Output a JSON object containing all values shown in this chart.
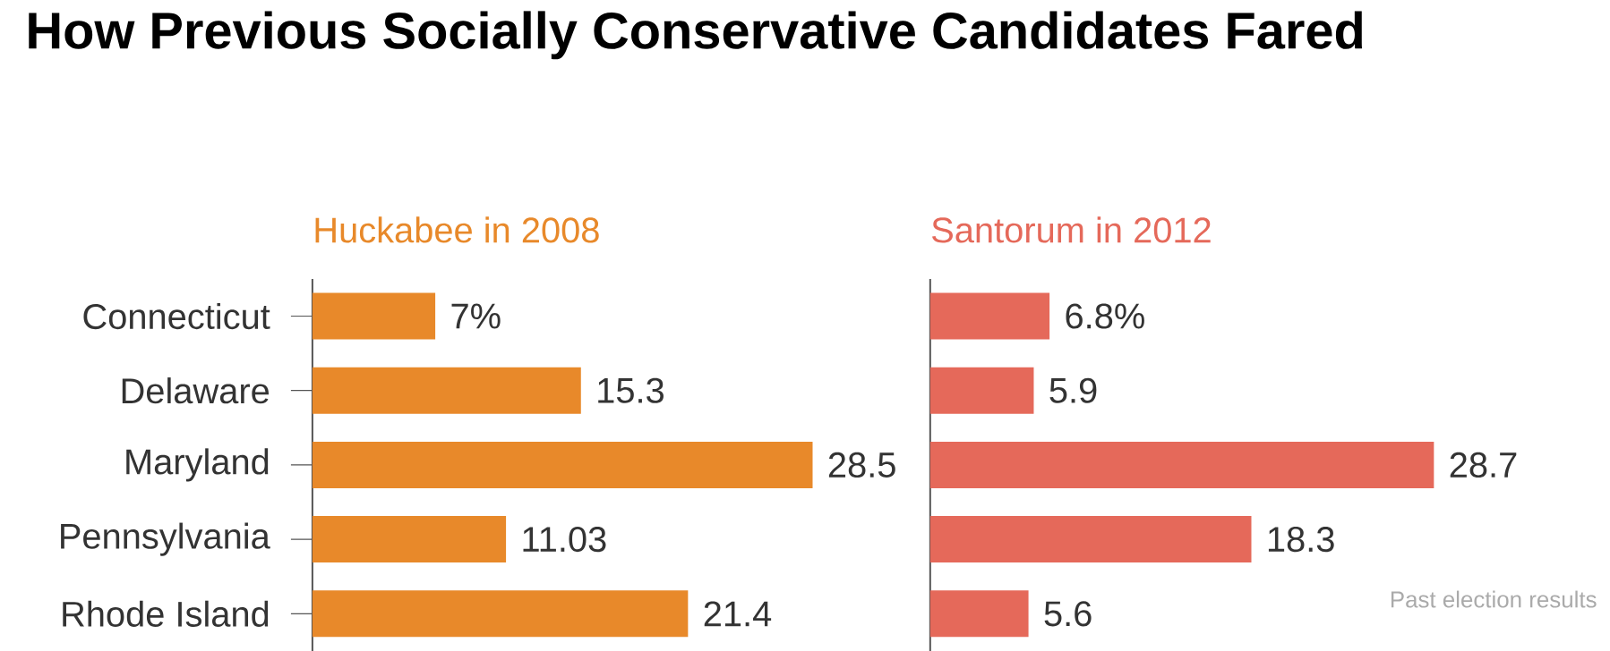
{
  "chart_data": [
    {
      "type": "bar",
      "orientation": "horizontal",
      "title": "How Previous Socially Conservative Candidates Fared",
      "subtitle": "Huckabee in 2008",
      "categories": [
        "Connecticut",
        "Delaware",
        "Maryland",
        "Pennsylvania",
        "Rhode Island"
      ],
      "values": [
        7,
        15.3,
        28.5,
        11.03,
        21.4
      ],
      "value_labels": [
        "7%",
        "15.3",
        "28.5",
        "11.03",
        "21.4"
      ],
      "color": "#e8892a",
      "tick_labels": "y"
    },
    {
      "type": "bar",
      "orientation": "horizontal",
      "subtitle": "Santorum in 2012",
      "categories": [
        null,
        null,
        null,
        null,
        null
      ],
      "values": [
        6.8,
        5.9,
        28.7,
        18.3,
        5.6
      ],
      "value_labels": [
        "6.8%",
        "5.9",
        "28.7",
        "18.3",
        "5.6"
      ],
      "color": "#e5695a",
      "tick_labels": false,
      "annotations": [
        "Past election results"
      ]
    }
  ]
}
